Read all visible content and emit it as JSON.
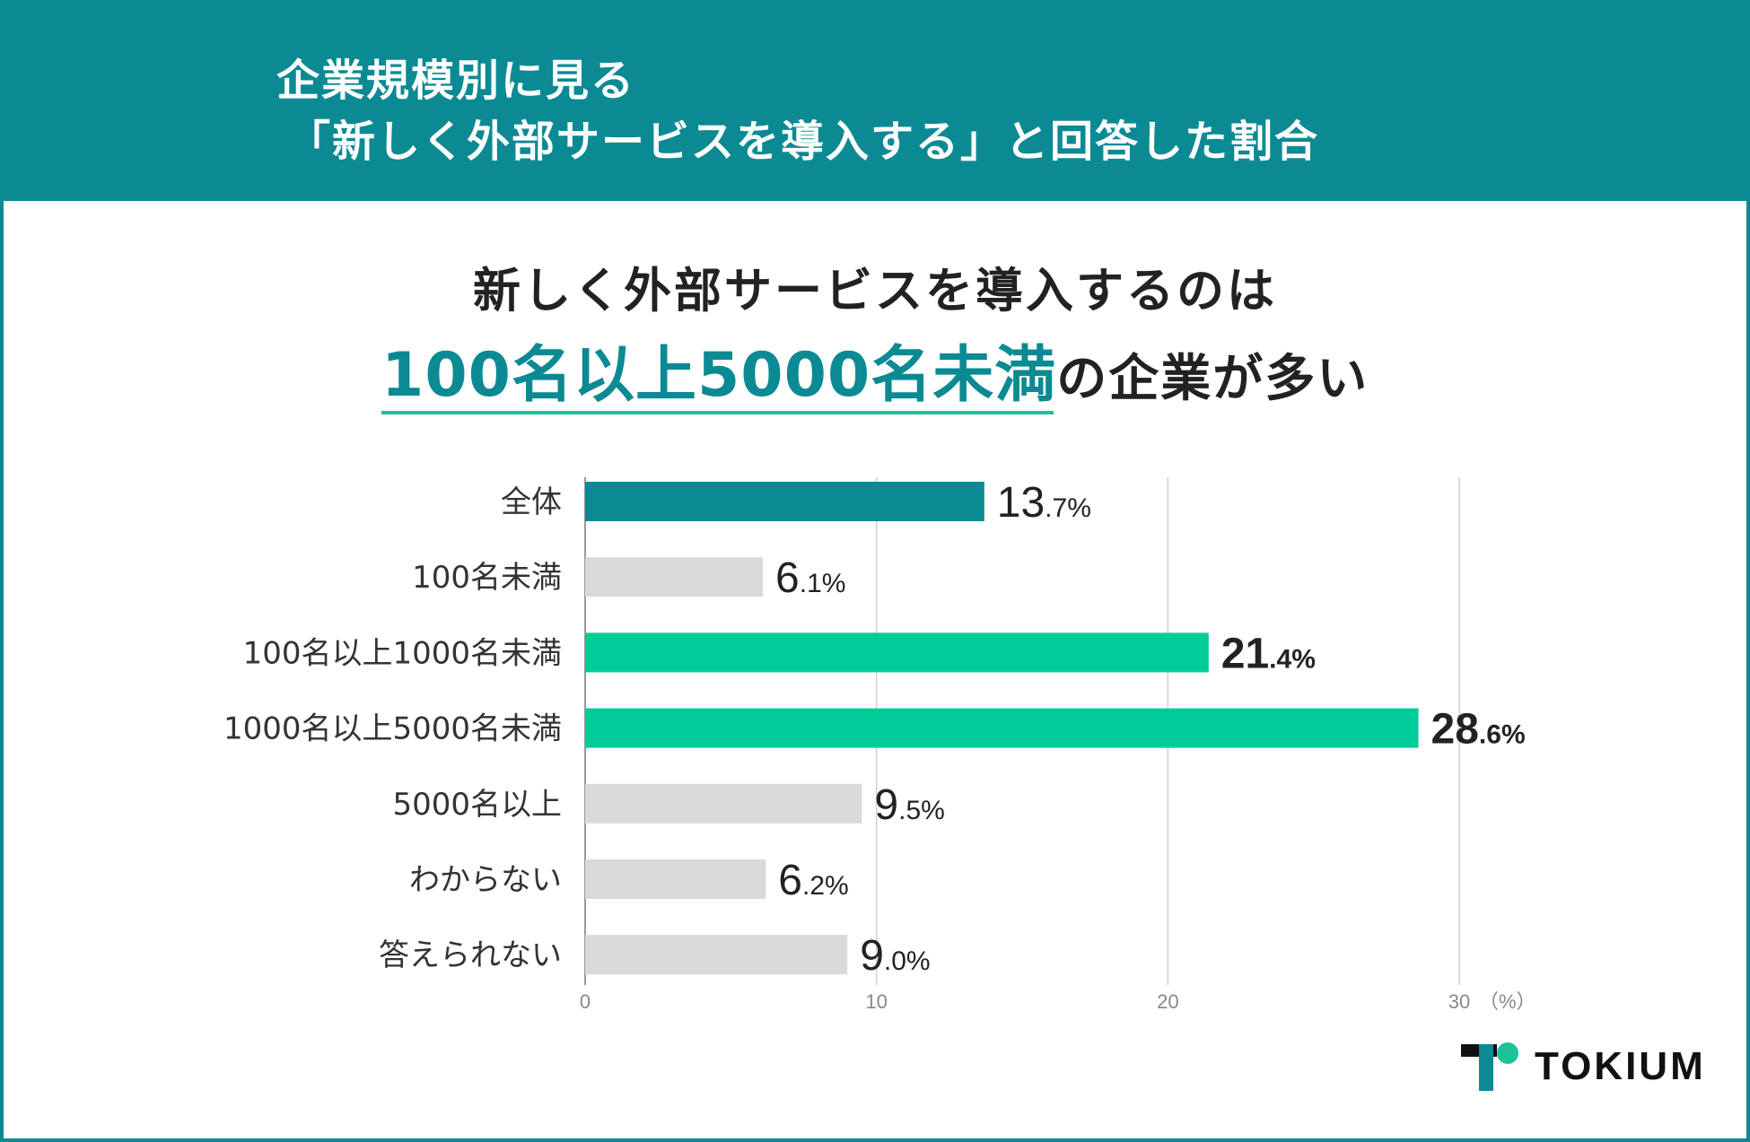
{
  "header": {
    "line1": "企業規模別に見る",
    "line2": "「新しく外部サービスを導入する」と回答した割合"
  },
  "headline": {
    "line1": "新しく外部サービスを導入するのは",
    "highlight": "100名以上5000名未満",
    "rest": "の企業が多い"
  },
  "colors": {
    "brand_teal": "#0b8a93",
    "highlight_green": "#00cc99",
    "neutral_gray": "#d9d9d9"
  },
  "chart_data": {
    "type": "bar",
    "orientation": "horizontal",
    "categories": [
      "全体",
      "100名未満",
      "100名以上1000名未満",
      "1000名以上5000名未満",
      "5000名以上",
      "わからない",
      "答えられない"
    ],
    "values": [
      13.7,
      6.1,
      21.4,
      28.6,
      9.5,
      6.2,
      9.0
    ],
    "bar_colors": [
      "#0b8a93",
      "#d9d9d9",
      "#00cc99",
      "#00cc99",
      "#d9d9d9",
      "#d9d9d9",
      "#d9d9d9"
    ],
    "value_labels": [
      {
        "int": "13",
        "dec": ".7%"
      },
      {
        "int": "6",
        "dec": ".1%"
      },
      {
        "int": "21",
        "dec": ".4%"
      },
      {
        "int": "28",
        "dec": ".6%"
      },
      {
        "int": "9",
        "dec": ".5%"
      },
      {
        "int": "6",
        "dec": ".2%"
      },
      {
        "int": "9",
        "dec": ".0%"
      }
    ],
    "emphasized": [
      false,
      false,
      true,
      true,
      false,
      false,
      false
    ],
    "xlim": [
      0,
      30
    ],
    "xticks": [
      0,
      10,
      20,
      30
    ],
    "x_unit": "（%）",
    "grid": true
  },
  "logo": {
    "text": "TOKIUM"
  }
}
